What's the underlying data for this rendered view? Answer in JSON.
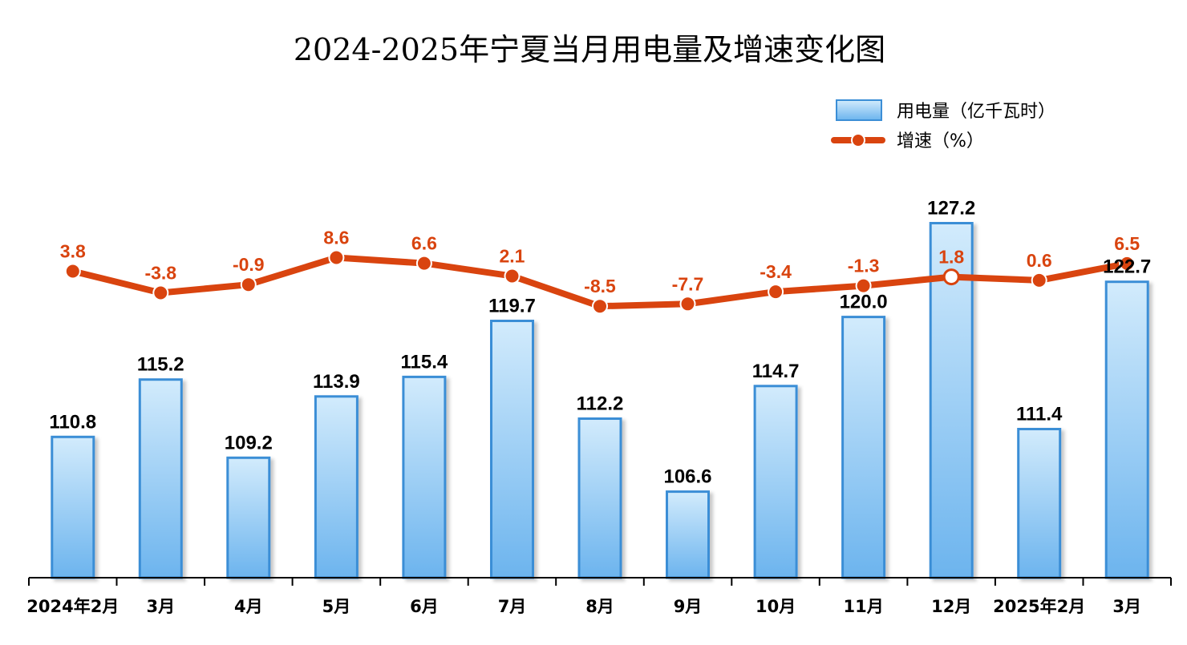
{
  "chart_data": {
    "type": "bar+line",
    "title": "2024-2025年宁夏当月用电量及增速变化图",
    "categories": [
      "2024年2月",
      "3月",
      "4月",
      "5月",
      "6月",
      "7月",
      "8月",
      "9月",
      "10月",
      "11月",
      "12月",
      "2025年2月",
      "3月"
    ],
    "series": [
      {
        "name": "用电量（亿千瓦时）",
        "type": "bar",
        "values": [
          110.8,
          115.2,
          109.2,
          113.9,
          115.4,
          119.7,
          112.2,
          106.6,
          114.7,
          120.0,
          127.2,
          111.4,
          122.7
        ],
        "labels": [
          "110.8",
          "115.2",
          "109.2",
          "113.9",
          "115.4",
          "119.7",
          "112.2",
          "106.6",
          "114.7",
          "120.0",
          "127.2",
          "111.4",
          "122.7"
        ]
      },
      {
        "name": "增速（%）",
        "type": "line",
        "values": [
          3.8,
          -3.8,
          -0.9,
          8.6,
          6.6,
          2.1,
          -8.5,
          -7.7,
          -3.4,
          -1.3,
          1.8,
          0.6,
          6.5
        ],
        "labels": [
          "3.8",
          "-3.8",
          "-0.9",
          "8.6",
          "6.6",
          "2.1",
          "-8.5",
          "-7.7",
          "-3.4",
          "-1.3",
          "1.8",
          "0.6",
          "6.5"
        ]
      }
    ],
    "legend": {
      "position": "top-right",
      "items": [
        "用电量（亿千瓦时）",
        "增速（%）"
      ]
    },
    "colors": {
      "bar_fill_top": "#d2ebfc",
      "bar_fill_bottom": "#6cb4ee",
      "bar_border": "#3b8ed6",
      "line": "#d9440f",
      "marker_fill": "#d9440f",
      "marker_white_fill": "#ffffff",
      "rate_label": "#d9440f",
      "axis": "#000000"
    },
    "bar_value_range": [
      100,
      130
    ],
    "rate_value_range": [
      -20,
      12
    ],
    "grid": false
  }
}
